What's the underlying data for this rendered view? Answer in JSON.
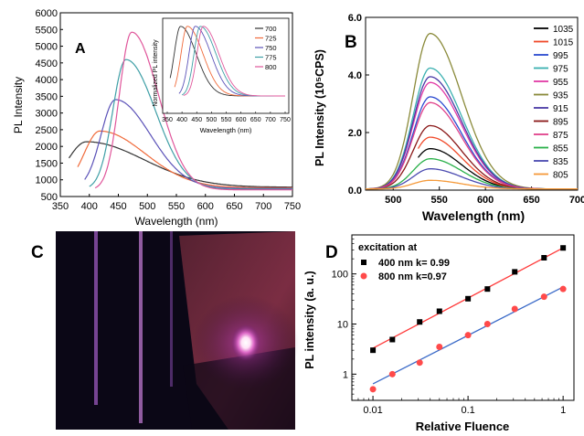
{
  "panels": {
    "a": {
      "letter": "A"
    },
    "b": {
      "letter": "B"
    },
    "c": {
      "letter": "C"
    },
    "d": {
      "letter": "D"
    }
  },
  "photo": {
    "description_icon": "glowing-sample-icon",
    "colors": {
      "background": "#0b0716",
      "glow": "#ffd6f4",
      "halo": "#c13fb5",
      "bars": "#c98ad9"
    }
  },
  "chart_data": [
    {
      "id": "a",
      "type": "line",
      "title": "",
      "xlabel": "Wavelength (nm)",
      "ylabel": "PL Intensity",
      "xlim": [
        350,
        750
      ],
      "ylim": [
        500,
        6000
      ],
      "xticks": [
        350,
        400,
        450,
        500,
        550,
        600,
        650,
        700,
        750
      ],
      "yticks": [
        500,
        1000,
        1500,
        2000,
        2500,
        3000,
        3500,
        4000,
        4500,
        5000,
        5500,
        6000
      ],
      "grid": false,
      "legend": "none",
      "series": [
        {
          "color": "#333333",
          "start": 365,
          "end": 750,
          "peak": 395,
          "amp": 1440,
          "base": 780,
          "wl": 45,
          "wr": 140
        },
        {
          "color": "#f06a3a",
          "start": 380,
          "end": 750,
          "peak": 418,
          "amp": 1760,
          "base": 760,
          "wl": 38,
          "wr": 110
        },
        {
          "color": "#5b52b8",
          "start": 392,
          "end": 750,
          "peak": 445,
          "amp": 2700,
          "base": 740,
          "wl": 35,
          "wr": 85
        },
        {
          "color": "#3f9fa6",
          "start": 400,
          "end": 750,
          "peak": 463,
          "amp": 3900,
          "base": 720,
          "wl": 32,
          "wr": 72
        },
        {
          "color": "#e0569b",
          "start": 410,
          "end": 750,
          "peak": 473,
          "amp": 4720,
          "base": 700,
          "wl": 30,
          "wr": 65
        }
      ]
    },
    {
      "id": "a-inset",
      "type": "line",
      "title": "",
      "xlabel": "Wavelength (nm)",
      "ylabel": "Normalized PL intensity",
      "xlim": [
        350,
        750
      ],
      "ylim": [
        0,
        1.05
      ],
      "xticks": [
        350,
        400,
        450,
        500,
        550,
        600,
        650,
        700,
        750
      ],
      "grid": false,
      "legend": "right",
      "series": [
        {
          "name": "700",
          "color": "#333333",
          "start": 360,
          "peak": 395
        },
        {
          "name": "725",
          "color": "#f06a3a",
          "start": 375,
          "peak": 418
        },
        {
          "name": "750",
          "color": "#5b52b8",
          "start": 390,
          "peak": 445
        },
        {
          "name": "775",
          "color": "#3f9fa6",
          "start": 400,
          "peak": 462
        },
        {
          "name": "800",
          "color": "#e0569b",
          "start": 405,
          "peak": 472
        }
      ]
    },
    {
      "id": "b",
      "type": "line",
      "title": "",
      "xlabel": "Wavelength (nm)",
      "ylabel": "PL Intensity (10⁵CPS)",
      "xlim": [
        470,
        700
      ],
      "ylim": [
        0,
        6
      ],
      "xticks": [
        500,
        550,
        600,
        650,
        700
      ],
      "yticks": [
        0.0,
        2.0,
        4.0,
        6.0
      ],
      "tick_labels_y": [
        "0.0",
        "2.0",
        "4.0",
        "6.0"
      ],
      "grid": false,
      "legend": "right",
      "series": [
        {
          "name": "1035",
          "color": "#000000",
          "peak": 1.4,
          "start": 527
        },
        {
          "name": "1015",
          "color": "#f04a2a",
          "peak": 1.8,
          "start": 527
        },
        {
          "name": "995",
          "color": "#2a4ad0",
          "peak": 3.2,
          "start": 470
        },
        {
          "name": "975",
          "color": "#3ab0b0",
          "peak": 4.2,
          "start": 470
        },
        {
          "name": "955",
          "color": "#e23aa6",
          "peak": 3.7,
          "start": 470
        },
        {
          "name": "935",
          "color": "#8a8a3a",
          "peak": 5.4,
          "start": 470
        },
        {
          "name": "915",
          "color": "#4a3aa6",
          "peak": 3.9,
          "start": 470
        },
        {
          "name": "895",
          "color": "#8a1818",
          "peak": 2.2,
          "start": 470
        },
        {
          "name": "875",
          "color": "#e0408a",
          "peak": 3.0,
          "start": 470
        },
        {
          "name": "855",
          "color": "#2ab04a",
          "peak": 1.05,
          "start": 470
        },
        {
          "name": "835",
          "color": "#4a4ab0",
          "peak": 0.7,
          "start": 470
        },
        {
          "name": "805",
          "color": "#f59a3a",
          "peak": 0.3,
          "start": 470
        }
      ]
    },
    {
      "id": "d",
      "type": "scatter",
      "title": "",
      "xlabel": "Relative Fluence",
      "ylabel": "PL intensity (a. u.)",
      "xscale": "log",
      "yscale": "log",
      "xlim": [
        0.006,
        1.3
      ],
      "ylim": [
        0.3,
        600
      ],
      "xtick_labels": [
        "0.01",
        "0.1",
        "1"
      ],
      "ytick_labels": [
        "1",
        "10",
        "100"
      ],
      "grid": false,
      "legend": "top-left",
      "legend_title": "excitation at",
      "series": [
        {
          "name": "400 nm  k= 0.99",
          "color": "#000000",
          "marker": "square",
          "line_color": "#ff3a3a",
          "x": [
            0.01,
            0.016,
            0.031,
            0.05,
            0.1,
            0.16,
            0.31,
            0.63,
            1.0
          ],
          "y": [
            3.0,
            4.9,
            11.0,
            18.0,
            32.0,
            50.0,
            110.0,
            210.0,
            330.0
          ],
          "fit": [
            [
              0.01,
              3.3
            ],
            [
              1.0,
              330.0
            ]
          ]
        },
        {
          "name": "800 nm  k=0.97",
          "color": "#ff4a4a",
          "marker": "circle",
          "line_color": "#3a6ac8",
          "x": [
            0.01,
            0.016,
            0.031,
            0.05,
            0.1,
            0.16,
            0.31,
            0.63,
            1.0
          ],
          "y": [
            0.5,
            1.0,
            1.7,
            3.5,
            6.0,
            10.0,
            20.0,
            35.0,
            50.0
          ],
          "fit": [
            [
              0.01,
              0.64
            ],
            [
              1.0,
              55.0
            ]
          ]
        }
      ]
    }
  ]
}
